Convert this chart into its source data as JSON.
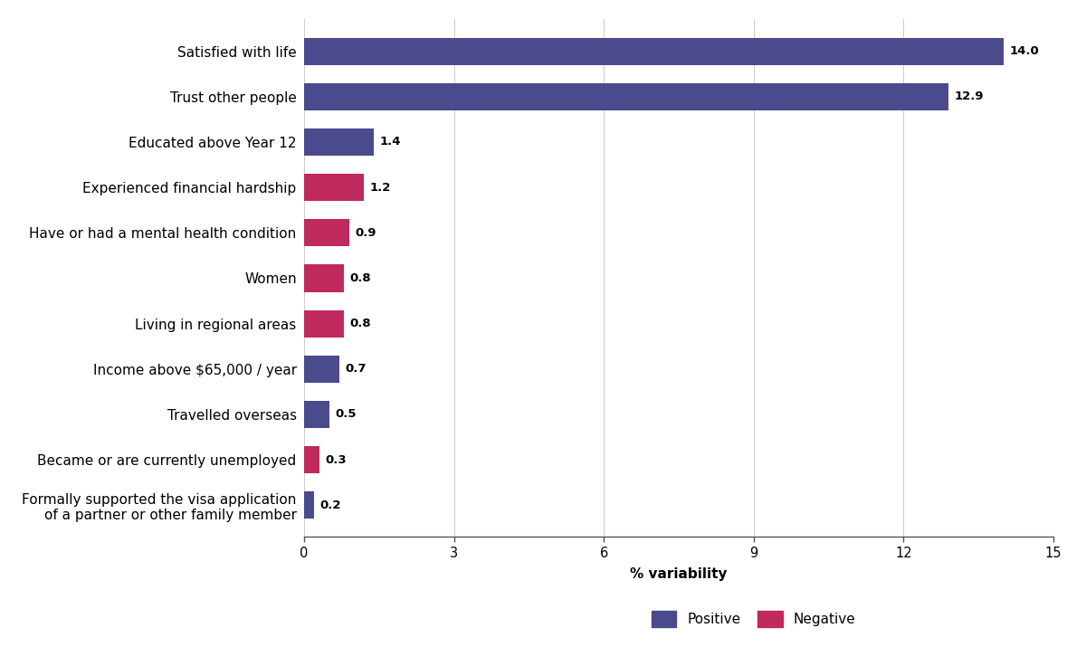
{
  "categories": [
    "Formally supported the visa application\nof a partner or other family member",
    "Became or are currently unemployed",
    "Travelled overseas",
    "Income above $65,000 / year",
    "Living in regional areas",
    "Women",
    "Have or had a mental health condition",
    "Experienced financial hardship",
    "Educated above Year 12",
    "Trust other people",
    "Satisfied with life"
  ],
  "values": [
    0.2,
    0.3,
    0.5,
    0.7,
    0.8,
    0.8,
    0.9,
    1.2,
    1.4,
    12.9,
    14.0
  ],
  "colors": [
    "#4a4a8c",
    "#c0295e",
    "#4a4a8c",
    "#4a4a8c",
    "#c0295e",
    "#c0295e",
    "#c0295e",
    "#c0295e",
    "#4a4a8c",
    "#4a4a8c",
    "#4a4a8c"
  ],
  "positive_color": "#4a4a8c",
  "negative_color": "#c0295e",
  "xlabel": "% variability",
  "xlim": [
    0,
    15
  ],
  "xticks": [
    0,
    3,
    6,
    9,
    12,
    15
  ],
  "label_fontsize": 11,
  "tick_fontsize": 10.5,
  "value_fontsize": 9.5,
  "legend_fontsize": 11,
  "bar_height": 0.6,
  "background_color": "#ffffff"
}
